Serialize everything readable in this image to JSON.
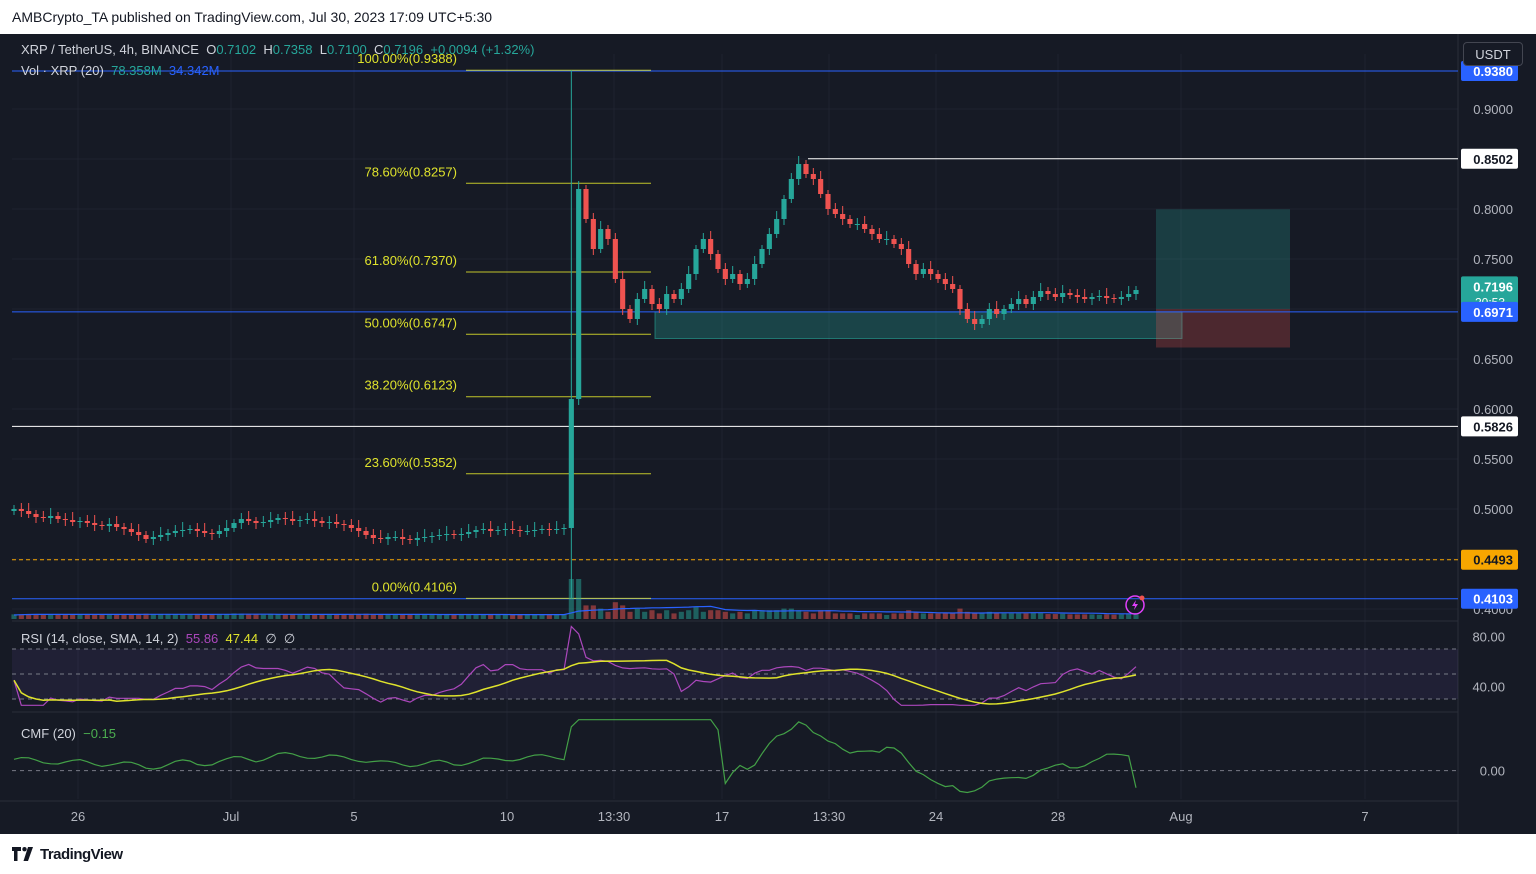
{
  "header": {
    "publisher_text": "AMBCrypto_TA published on TradingView.com, Jul 30, 2023 17:09 UTC+5:30"
  },
  "footer": {
    "brand": "TradingView"
  },
  "legend": {
    "symbol": "XRP / TetherUS, 4h, BINANCE",
    "o_label": "O",
    "o_value": "0.7102",
    "h_label": "H",
    "h_value": "0.7358",
    "l_label": "L",
    "l_value": "0.7100",
    "c_label": "C",
    "c_value": "0.7196",
    "change": "+0.0094 (+1.32%)",
    "vol_label": "Vol · XRP (20)",
    "vol_value": "78.358M",
    "vol_ma": "34.342M",
    "rsi_label": "RSI (14, close, SMA, 14, 2)",
    "rsi_value": "55.86",
    "rsi_ma": "47.44",
    "rsi_na1": "∅",
    "rsi_na2": "∅",
    "cmf_label": "CMF (20)",
    "cmf_value": "−0.15",
    "currency_button": "USDT"
  },
  "colors": {
    "background": "#161a25",
    "up": "#26a69a",
    "down": "#ef5350",
    "fib": "#dfe32c",
    "blue_line": "#2962ff",
    "rsi": "#ab47bc",
    "rsi_ma": "#dfe32c",
    "cmf": "#43a047",
    "orange_level": "#f7a600"
  },
  "chart_data": {
    "type": "candlestick",
    "pair": "XRP / TetherUS",
    "timeframe": "4h",
    "exchange": "BINANCE",
    "ohlc_last": {
      "open": 0.7102,
      "high": 0.7358,
      "low": 0.71,
      "close": 0.7196,
      "change": 0.0094,
      "change_pct": 1.32
    },
    "y_axis": {
      "labels": [
        "0.9000",
        "0.8000",
        "0.7500",
        "0.6500",
        "0.6000",
        "0.5500",
        "0.5000",
        "0.4000"
      ],
      "range": [
        0.39,
        0.955
      ]
    },
    "x_axis": {
      "labels": [
        "26",
        "Jul",
        "5",
        "10",
        "13:30",
        "17",
        "13:30",
        "24",
        "28",
        "Aug",
        "7"
      ]
    },
    "price_labels": [
      {
        "value": "0.9380",
        "style": "blue"
      },
      {
        "value": "0.8502",
        "style": "white"
      },
      {
        "value": "0.7196",
        "style": "green",
        "countdown": "20:53"
      },
      {
        "value": "0.6971",
        "style": "blue"
      },
      {
        "value": "0.5826",
        "style": "white"
      },
      {
        "value": "0.4493",
        "style": "orange"
      },
      {
        "value": "0.4103",
        "style": "blue"
      }
    ],
    "fibonacci": [
      {
        "label": "100.00%(0.9388)",
        "price": 0.9388
      },
      {
        "label": "78.60%(0.8257)",
        "price": 0.8257
      },
      {
        "label": "61.80%(0.7370)",
        "price": 0.737
      },
      {
        "label": "50.00%(0.6747)",
        "price": 0.6747
      },
      {
        "label": "38.20%(0.6123)",
        "price": 0.6123
      },
      {
        "label": "23.60%(0.5352)",
        "price": 0.5352
      },
      {
        "label": "0.00%(0.4106)",
        "price": 0.4106
      }
    ],
    "horizontal_lines": [
      {
        "price": 0.938,
        "color": "blue"
      },
      {
        "price": 0.8502,
        "color": "white",
        "from_date": "Jul 19"
      },
      {
        "price": 0.6971,
        "color": "blue"
      },
      {
        "price": 0.5826,
        "color": "white"
      },
      {
        "price": 0.4493,
        "color": "orange",
        "dashed": true
      },
      {
        "price": 0.4103,
        "color": "blue"
      }
    ],
    "demand_zone": {
      "top": 0.6971,
      "bottom": 0.6705
    },
    "position": {
      "entry": 0.7,
      "target": 0.7997,
      "stop": 0.6615
    },
    "close_series": [
      0.5,
      0.498,
      0.495,
      0.492,
      0.491,
      0.493,
      0.49,
      0.489,
      0.487,
      0.488,
      0.486,
      0.484,
      0.483,
      0.485,
      0.482,
      0.48,
      0.477,
      0.474,
      0.47,
      0.472,
      0.474,
      0.476,
      0.478,
      0.479,
      0.48,
      0.478,
      0.476,
      0.475,
      0.478,
      0.481,
      0.486,
      0.49,
      0.488,
      0.486,
      0.487,
      0.489,
      0.491,
      0.49,
      0.488,
      0.489,
      0.49,
      0.488,
      0.486,
      0.487,
      0.485,
      0.484,
      0.481,
      0.478,
      0.474,
      0.471,
      0.47,
      0.472,
      0.472,
      0.47,
      0.469,
      0.471,
      0.472,
      0.473,
      0.474,
      0.475,
      0.474,
      0.475,
      0.477,
      0.479,
      0.48,
      0.478,
      0.479,
      0.48,
      0.479,
      0.478,
      0.478,
      0.479,
      0.48,
      0.479,
      0.48,
      0.481,
      0.61,
      0.82,
      0.79,
      0.76,
      0.78,
      0.77,
      0.73,
      0.7,
      0.69,
      0.71,
      0.72,
      0.705,
      0.7,
      0.715,
      0.71,
      0.72,
      0.735,
      0.76,
      0.77,
      0.755,
      0.74,
      0.73,
      0.735,
      0.725,
      0.73,
      0.745,
      0.76,
      0.775,
      0.79,
      0.81,
      0.83,
      0.845,
      0.835,
      0.83,
      0.815,
      0.8,
      0.795,
      0.79,
      0.785,
      0.785,
      0.78,
      0.775,
      0.77,
      0.77,
      0.765,
      0.76,
      0.745,
      0.735,
      0.74,
      0.735,
      0.73,
      0.725,
      0.72,
      0.7,
      0.69,
      0.685,
      0.69,
      0.7,
      0.695,
      0.7,
      0.705,
      0.71,
      0.705,
      0.712,
      0.718,
      0.715,
      0.712,
      0.716,
      0.714,
      0.712,
      0.71,
      0.712,
      0.713,
      0.711,
      0.71,
      0.712,
      0.715,
      0.719
    ],
    "volume": {
      "current": "78.358M",
      "ma20": "34.342M"
    },
    "rsi": {
      "params": "14, close, SMA, 14, 2",
      "value": 55.86,
      "ma": 47.44,
      "axis_labels": [
        "80.00",
        "40.00"
      ],
      "bands": [
        70,
        50,
        30
      ],
      "range": [
        22,
        90
      ]
    },
    "cmf": {
      "params": "20",
      "value": -0.15,
      "axis_labels": [
        "0.00"
      ],
      "range": [
        -0.25,
        0.5
      ]
    }
  }
}
